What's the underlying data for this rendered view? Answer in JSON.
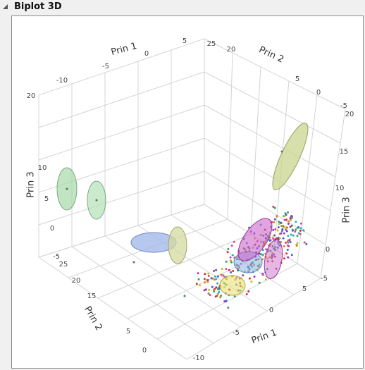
{
  "panel": {
    "title": "Biplot 3D"
  },
  "axes": {
    "prin1_top": {
      "label": "Prin 1",
      "ticks": [
        "-10",
        "-5",
        "0",
        "5"
      ]
    },
    "prin2_top": {
      "label": "Prin 2",
      "ticks": [
        "25",
        "20",
        "5",
        "0",
        "-5"
      ]
    },
    "prin3_left": {
      "label": "Prin 3",
      "ticks": [
        "20",
        "10",
        "5",
        "0",
        "-5"
      ]
    },
    "prin3_right": {
      "label": "Prin 3",
      "ticks": [
        "20",
        "15",
        "10",
        "0",
        "-5"
      ]
    },
    "prin2_bottom": {
      "label": "Prin 2",
      "ticks": [
        "25",
        "20",
        "15",
        "5",
        "0"
      ]
    },
    "prin1_bottom": {
      "label": "Prin 1",
      "ticks": [
        "5",
        "0",
        "-5",
        "-10"
      ]
    }
  }
}
